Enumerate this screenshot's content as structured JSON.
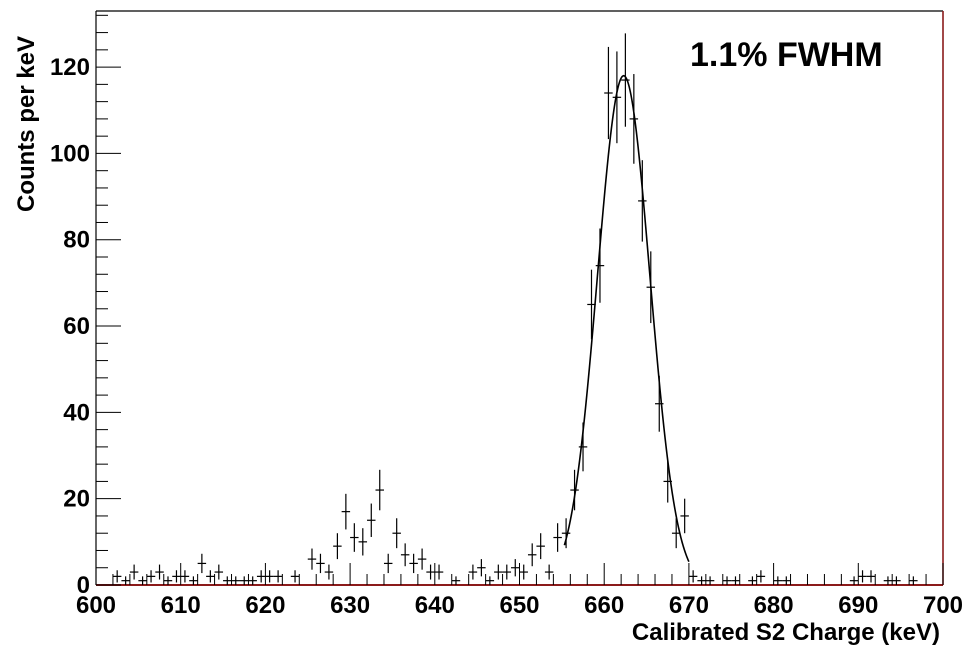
{
  "chart_data": {
    "type": "scatter",
    "xlabel": "Calibrated S2 Charge (keV)",
    "ylabel": "Counts per keV",
    "annotation": "1.1% FWHM",
    "xlim": [
      600,
      700
    ],
    "ylim": [
      0,
      133
    ],
    "x_ticks": [
      600,
      610,
      620,
      630,
      640,
      650,
      660,
      670,
      680,
      690,
      700
    ],
    "y_ticks": [
      0,
      20,
      40,
      60,
      80,
      100,
      120
    ],
    "grid": false,
    "colors": {
      "frame_right": "#8b1a1a",
      "frame_bottom": "#8b1a1a",
      "marker": "#000000",
      "fit": "#000000"
    },
    "series": [
      {
        "style": "errorbar",
        "bin_width": 1,
        "points": [
          {
            "x": 602.5,
            "y": 2
          },
          {
            "x": 603.5,
            "y": 1
          },
          {
            "x": 604.5,
            "y": 3
          },
          {
            "x": 605.5,
            "y": 1
          },
          {
            "x": 606.5,
            "y": 2
          },
          {
            "x": 607.5,
            "y": 3
          },
          {
            "x": 608.5,
            "y": 1
          },
          {
            "x": 609.5,
            "y": 2
          },
          {
            "x": 610.5,
            "y": 2
          },
          {
            "x": 611.5,
            "y": 1
          },
          {
            "x": 612.5,
            "y": 5
          },
          {
            "x": 613.5,
            "y": 2
          },
          {
            "x": 614.5,
            "y": 3
          },
          {
            "x": 615.5,
            "y": 1
          },
          {
            "x": 616.5,
            "y": 1
          },
          {
            "x": 617.5,
            "y": 1
          },
          {
            "x": 618.5,
            "y": 1
          },
          {
            "x": 619.5,
            "y": 2
          },
          {
            "x": 620.5,
            "y": 2
          },
          {
            "x": 621.5,
            "y": 2
          },
          {
            "x": 623.5,
            "y": 2
          },
          {
            "x": 625.5,
            "y": 6
          },
          {
            "x": 626.5,
            "y": 5
          },
          {
            "x": 627.5,
            "y": 3
          },
          {
            "x": 628.5,
            "y": 9
          },
          {
            "x": 629.5,
            "y": 17
          },
          {
            "x": 630.5,
            "y": 11
          },
          {
            "x": 631.5,
            "y": 10
          },
          {
            "x": 632.5,
            "y": 15
          },
          {
            "x": 633.5,
            "y": 22
          },
          {
            "x": 634.5,
            "y": 5
          },
          {
            "x": 635.5,
            "y": 12
          },
          {
            "x": 636.5,
            "y": 7
          },
          {
            "x": 637.5,
            "y": 5
          },
          {
            "x": 638.5,
            "y": 6
          },
          {
            "x": 639.5,
            "y": 3
          },
          {
            "x": 640.5,
            "y": 3
          },
          {
            "x": 642.5,
            "y": 1
          },
          {
            "x": 644.5,
            "y": 3
          },
          {
            "x": 645.5,
            "y": 4
          },
          {
            "x": 646.5,
            "y": 1
          },
          {
            "x": 647.5,
            "y": 3
          },
          {
            "x": 648.5,
            "y": 3
          },
          {
            "x": 649.5,
            "y": 4
          },
          {
            "x": 650.5,
            "y": 3
          },
          {
            "x": 651.5,
            "y": 7
          },
          {
            "x": 652.5,
            "y": 9
          },
          {
            "x": 653.5,
            "y": 3
          },
          {
            "x": 654.5,
            "y": 11
          },
          {
            "x": 655.5,
            "y": 12
          },
          {
            "x": 656.5,
            "y": 22
          },
          {
            "x": 657.5,
            "y": 32
          },
          {
            "x": 658.5,
            "y": 65
          },
          {
            "x": 659.5,
            "y": 74
          },
          {
            "x": 660.5,
            "y": 114
          },
          {
            "x": 661.5,
            "y": 113
          },
          {
            "x": 662.5,
            "y": 117
          },
          {
            "x": 663.5,
            "y": 108
          },
          {
            "x": 664.5,
            "y": 89
          },
          {
            "x": 665.5,
            "y": 69
          },
          {
            "x": 666.5,
            "y": 42
          },
          {
            "x": 667.5,
            "y": 24
          },
          {
            "x": 668.5,
            "y": 12
          },
          {
            "x": 669.5,
            "y": 16
          },
          {
            "x": 670.5,
            "y": 2
          },
          {
            "x": 671.5,
            "y": 1
          },
          {
            "x": 672.5,
            "y": 1
          },
          {
            "x": 674.5,
            "y": 1
          },
          {
            "x": 675.5,
            "y": 1
          },
          {
            "x": 677.5,
            "y": 1
          },
          {
            "x": 678.5,
            "y": 2
          },
          {
            "x": 680.5,
            "y": 1
          },
          {
            "x": 681.5,
            "y": 1
          },
          {
            "x": 689.5,
            "y": 1
          },
          {
            "x": 690.5,
            "y": 2
          },
          {
            "x": 691.5,
            "y": 2
          },
          {
            "x": 693.5,
            "y": 1
          },
          {
            "x": 694.5,
            "y": 1
          },
          {
            "x": 696.5,
            "y": 1
          }
        ]
      },
      {
        "style": "fit",
        "function": "gaussian",
        "amplitude": 118,
        "mean": 662.3,
        "sigma": 3.1,
        "x_range": [
          655.3,
          670
        ]
      }
    ]
  }
}
